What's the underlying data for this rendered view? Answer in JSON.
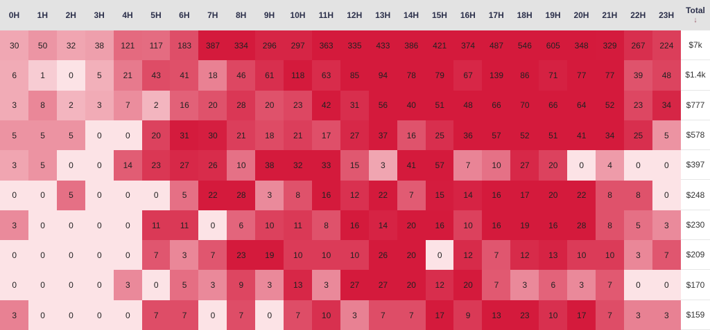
{
  "chart_data": {
    "type": "heatmap",
    "x_categories": [
      "0H",
      "1H",
      "2H",
      "3H",
      "4H",
      "5H",
      "6H",
      "7H",
      "8H",
      "9H",
      "10H",
      "11H",
      "12H",
      "13H",
      "14H",
      "15H",
      "16H",
      "17H",
      "18H",
      "19H",
      "20H",
      "21H",
      "22H",
      "23H"
    ],
    "total_header": "Total",
    "sort_icon": "sort-descending-arrow-icon",
    "rows": [
      {
        "values": [
          30,
          50,
          32,
          38,
          121,
          117,
          183,
          387,
          334,
          296,
          297,
          363,
          335,
          433,
          386,
          421,
          374,
          487,
          546,
          605,
          348,
          329,
          267,
          224
        ],
        "total": "$7k"
      },
      {
        "values": [
          6,
          1,
          0,
          5,
          21,
          43,
          41,
          18,
          46,
          61,
          118,
          63,
          85,
          94,
          78,
          79,
          67,
          139,
          86,
          71,
          77,
          77,
          39,
          48
        ],
        "total": "$1.4k"
      },
      {
        "values": [
          3,
          8,
          2,
          3,
          7,
          2,
          16,
          20,
          28,
          20,
          23,
          42,
          31,
          56,
          40,
          51,
          48,
          66,
          70,
          66,
          64,
          52,
          23,
          34
        ],
        "total": "$777"
      },
      {
        "values": [
          5,
          5,
          5,
          0,
          0,
          20,
          31,
          30,
          21,
          18,
          21,
          17,
          27,
          37,
          16,
          25,
          36,
          57,
          52,
          51,
          41,
          34,
          25,
          5
        ],
        "total": "$578"
      },
      {
        "values": [
          3,
          5,
          0,
          0,
          14,
          23,
          27,
          26,
          10,
          38,
          32,
          33,
          15,
          3,
          41,
          57,
          7,
          10,
          27,
          20,
          0,
          4,
          0,
          0
        ],
        "total": "$397"
      },
      {
        "values": [
          0,
          0,
          5,
          0,
          0,
          0,
          5,
          22,
          28,
          3,
          8,
          16,
          12,
          22,
          7,
          15,
          14,
          16,
          17,
          20,
          22,
          8,
          8,
          0
        ],
        "total": "$248"
      },
      {
        "values": [
          3,
          0,
          0,
          0,
          0,
          11,
          11,
          0,
          6,
          10,
          11,
          8,
          16,
          14,
          20,
          16,
          10,
          16,
          19,
          16,
          28,
          8,
          5,
          3
        ],
        "total": "$230"
      },
      {
        "values": [
          0,
          0,
          0,
          0,
          0,
          7,
          3,
          7,
          23,
          19,
          10,
          10,
          10,
          26,
          20,
          0,
          12,
          7,
          12,
          13,
          10,
          10,
          3,
          7
        ],
        "total": "$209"
      },
      {
        "values": [
          0,
          0,
          0,
          0,
          3,
          0,
          5,
          3,
          9,
          3,
          13,
          3,
          27,
          27,
          20,
          12,
          20,
          7,
          3,
          6,
          3,
          7,
          0,
          0
        ],
        "total": "$170"
      },
      {
        "values": [
          3,
          0,
          0,
          0,
          0,
          7,
          7,
          0,
          7,
          0,
          7,
          10,
          3,
          7,
          7,
          17,
          9,
          13,
          23,
          10,
          17,
          7,
          3,
          3
        ],
        "total": "$159"
      }
    ],
    "colors": {
      "low": "#fce3e6",
      "high": "#d41a3c",
      "header_background": "#e3e3e3",
      "header_text": "#2b2f4a"
    }
  }
}
